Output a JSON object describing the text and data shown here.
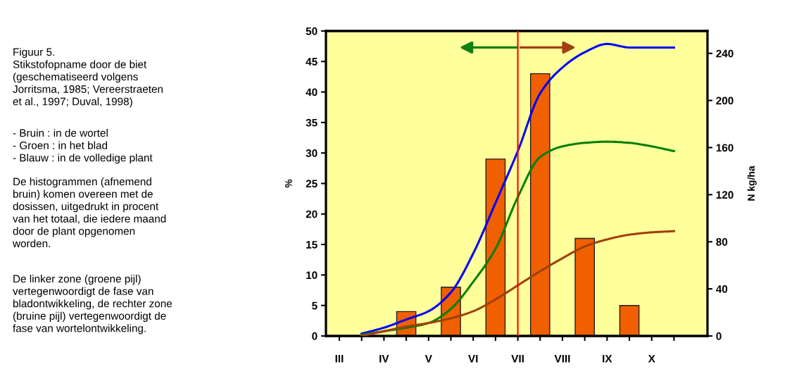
{
  "chart_data": {
    "type": "line",
    "ylabel": "%",
    "y2label": "N kg/ha",
    "categories": [
      "III",
      null,
      "IV",
      null,
      "V",
      null,
      "VI",
      null,
      "VII",
      null,
      "VIII",
      null,
      "IX",
      null,
      "X",
      null
    ],
    "ylim": [
      0,
      50
    ],
    "yticks": [
      0,
      5,
      10,
      15,
      20,
      25,
      30,
      35,
      40,
      45,
      50
    ],
    "y2lim": [
      0,
      259
    ],
    "y2ticks": [
      0,
      40,
      80,
      120,
      160,
      200,
      240
    ],
    "series": [
      {
        "type": "bar",
        "color": "#f06000",
        "values": [
          null,
          null,
          null,
          4,
          null,
          8,
          null,
          29,
          null,
          43,
          null,
          16,
          null,
          5,
          null,
          null
        ]
      },
      {
        "axis": "y2",
        "color": "#0000ff",
        "values": [
          null,
          2,
          7,
          14,
          21,
          37,
          70,
          113,
          157,
          206,
          228,
          241,
          248,
          245,
          245,
          245
        ]
      },
      {
        "axis": "y2",
        "color": "#008000",
        "values": [
          null,
          1,
          4,
          7,
          11,
          23,
          46,
          74,
          118,
          152,
          161,
          164,
          165,
          164,
          161,
          157
        ]
      },
      {
        "axis": "y2",
        "color": "#a0400a",
        "values": [
          null,
          0,
          4,
          8,
          11,
          15,
          21,
          31,
          43,
          55,
          66,
          76,
          82,
          86,
          88,
          89
        ]
      }
    ],
    "ref_lines": [
      {
        "axis": "x",
        "value": "VII",
        "color": "#ff0000"
      }
    ],
    "grid": false,
    "annotations": [
      "Figuur 5.\nStikstofopname door de biet\n(geschematiseerd volgens\nJorritsma, 1985; Vereerstraeten\net al., 1997; Duval, 1998)",
      "- Bruin : in de wortel\n- Groen : in het blad\n- Blauw : in de volledige plant",
      "De histogrammen (afnemend\nbruin) komen overeen met de\ndosissen, uitgedrukt in procent\nvan het totaal, die iedere maand\ndoor de plant opgenomen\nworden.",
      "De linker zone (groene pijl)\nvertegenwoordigt de fase van\nbladontwikkeling, de rechter zone\n(bruine pijl) vertegenwoordigt de\nfase van wortelontwikkeling."
    ]
  }
}
